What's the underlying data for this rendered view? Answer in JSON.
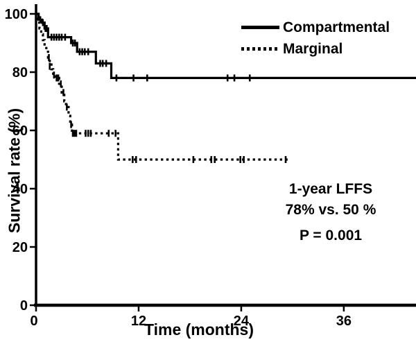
{
  "chart_data": {
    "type": "line",
    "subtype": "kaplan-meier-step",
    "title": "",
    "xlabel": "Time (months)",
    "ylabel": "Survival rate (%)",
    "xlim": [
      0,
      44.5
    ],
    "ylim": [
      0,
      105
    ],
    "x_ticks": [
      0,
      12,
      24,
      36
    ],
    "y_ticks": [
      0,
      20,
      40,
      60,
      80,
      100
    ],
    "grid": false,
    "legend_position": "top-right",
    "line_color": "#000000",
    "background_color": "#ffffff",
    "series": [
      {
        "name": "Compartmental",
        "style": "solid",
        "steps": [
          [
            0,
            100
          ],
          [
            0.3,
            100
          ],
          [
            0.3,
            98
          ],
          [
            0.7,
            98
          ],
          [
            0.7,
            97
          ],
          [
            1.0,
            97
          ],
          [
            1.0,
            95
          ],
          [
            1.4,
            95
          ],
          [
            1.4,
            92
          ],
          [
            4.1,
            92
          ],
          [
            4.1,
            90
          ],
          [
            4.8,
            90
          ],
          [
            4.8,
            87
          ],
          [
            7.0,
            87
          ],
          [
            7.0,
            83
          ],
          [
            8.8,
            83
          ],
          [
            8.8,
            78
          ],
          [
            44.5,
            78
          ]
        ],
        "censors": [
          [
            0.5,
            98
          ],
          [
            0.8,
            97
          ],
          [
            1.1,
            95
          ],
          [
            1.25,
            95
          ],
          [
            1.8,
            92
          ],
          [
            2.1,
            92
          ],
          [
            2.4,
            92
          ],
          [
            2.7,
            92
          ],
          [
            3.0,
            92
          ],
          [
            3.4,
            92
          ],
          [
            4.3,
            90
          ],
          [
            4.55,
            90
          ],
          [
            5.1,
            87
          ],
          [
            5.4,
            87
          ],
          [
            5.7,
            87
          ],
          [
            6.1,
            87
          ],
          [
            7.5,
            83
          ],
          [
            7.8,
            83
          ],
          [
            8.2,
            83
          ],
          [
            9.4,
            78
          ],
          [
            11.4,
            78
          ],
          [
            13.0,
            78
          ],
          [
            22.4,
            78
          ],
          [
            23.2,
            78
          ],
          [
            25.0,
            78
          ]
        ]
      },
      {
        "name": "Marginal",
        "style": "dotted",
        "steps": [
          [
            0,
            100
          ],
          [
            0.2,
            100
          ],
          [
            0.2,
            97
          ],
          [
            0.4,
            97
          ],
          [
            0.4,
            95
          ],
          [
            0.6,
            95
          ],
          [
            0.6,
            93
          ],
          [
            0.8,
            93
          ],
          [
            0.8,
            91
          ],
          [
            1.0,
            91
          ],
          [
            1.0,
            89
          ],
          [
            1.2,
            89
          ],
          [
            1.2,
            87
          ],
          [
            1.4,
            87
          ],
          [
            1.4,
            85
          ],
          [
            1.6,
            85
          ],
          [
            1.6,
            83
          ],
          [
            1.8,
            83
          ],
          [
            1.8,
            81
          ],
          [
            2.0,
            81
          ],
          [
            2.0,
            79
          ],
          [
            2.3,
            79
          ],
          [
            2.3,
            78
          ],
          [
            2.7,
            78
          ],
          [
            2.7,
            76
          ],
          [
            3.0,
            76
          ],
          [
            3.0,
            73
          ],
          [
            3.3,
            73
          ],
          [
            3.3,
            70
          ],
          [
            3.5,
            70
          ],
          [
            3.5,
            68
          ],
          [
            3.8,
            68
          ],
          [
            3.8,
            65
          ],
          [
            4.0,
            65
          ],
          [
            4.0,
            62
          ],
          [
            4.2,
            62
          ],
          [
            4.2,
            59
          ],
          [
            9.6,
            59
          ],
          [
            9.6,
            50
          ],
          [
            29.6,
            50
          ]
        ],
        "censors": [
          [
            1.5,
            85
          ],
          [
            1.6,
            82
          ],
          [
            2.1,
            79
          ],
          [
            2.4,
            78
          ],
          [
            2.6,
            78
          ],
          [
            2.9,
            76
          ],
          [
            3.2,
            73
          ],
          [
            3.6,
            68
          ],
          [
            4.1,
            62
          ],
          [
            4.3,
            59
          ],
          [
            4.5,
            59
          ],
          [
            4.7,
            59
          ],
          [
            5.8,
            59
          ],
          [
            6.1,
            59
          ],
          [
            6.4,
            59
          ],
          [
            8.5,
            59
          ],
          [
            9.3,
            59
          ],
          [
            11.3,
            50
          ],
          [
            11.7,
            50
          ],
          [
            18.4,
            50
          ],
          [
            20.5,
            50
          ],
          [
            20.9,
            50
          ],
          [
            23.9,
            50
          ],
          [
            24.3,
            50
          ],
          [
            29.2,
            50
          ]
        ]
      }
    ],
    "annotation": {
      "line1": "1-year LFFS",
      "line2": "78% vs. 50 %",
      "line3": "P = 0.001"
    }
  }
}
